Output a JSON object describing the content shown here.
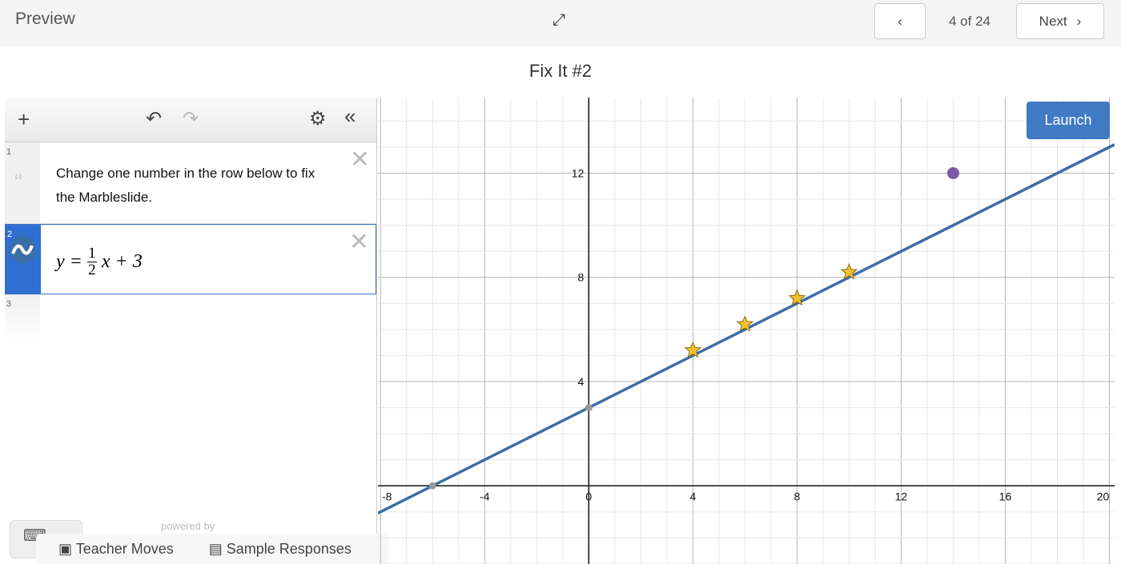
{
  "header": {
    "title": "Preview",
    "page_counter": "4 of 24",
    "next_label": "Next",
    "prev_icon": "chevron-left",
    "next_icon": "chevron-right",
    "expand_icon": "expand-arrows"
  },
  "slide_title": "Fix It #2",
  "expression_panel": {
    "toolbar": {
      "add_icon": "plus",
      "undo_icon": "undo",
      "redo_icon": "redo",
      "settings_icon": "gear",
      "collapse_icon": "double-chevron-left"
    },
    "rows": [
      {
        "number": "1",
        "type": "note",
        "text": "Change one number in the row below to fix the Marbleslide."
      },
      {
        "number": "2",
        "type": "expression",
        "lhs": "y =",
        "numerator": "1",
        "denominator": "2",
        "rest": "x + 3"
      },
      {
        "number": "3",
        "type": "empty"
      }
    ],
    "powered_by": "powered by"
  },
  "bottom_tabs": {
    "teacher_moves": "Teacher Moves",
    "sample_responses": "Sample Responses"
  },
  "launch_label": "Launch",
  "chart_data": {
    "type": "line",
    "xlim": [
      -8.1,
      20.2
    ],
    "ylim": [
      -3,
      14.9
    ],
    "x_ticks": [
      -8,
      -4,
      0,
      4,
      8,
      12,
      16,
      20
    ],
    "y_ticks": [
      4,
      8,
      12
    ],
    "grid": true,
    "line": {
      "slope": 0.5,
      "intercept": 3,
      "color": "#3a6ea8"
    },
    "stars": [
      {
        "x": 4,
        "y": 5.2
      },
      {
        "x": 6,
        "y": 6.2
      },
      {
        "x": 8,
        "y": 7.2
      },
      {
        "x": 10,
        "y": 8.2
      }
    ],
    "star_color": "#f2c12e",
    "target_point": {
      "x": 14,
      "y": 12,
      "color": "#7a5ba6"
    },
    "intercept_points": [
      {
        "x": 0,
        "y": 3
      },
      {
        "x": -6,
        "y": 0
      }
    ]
  }
}
